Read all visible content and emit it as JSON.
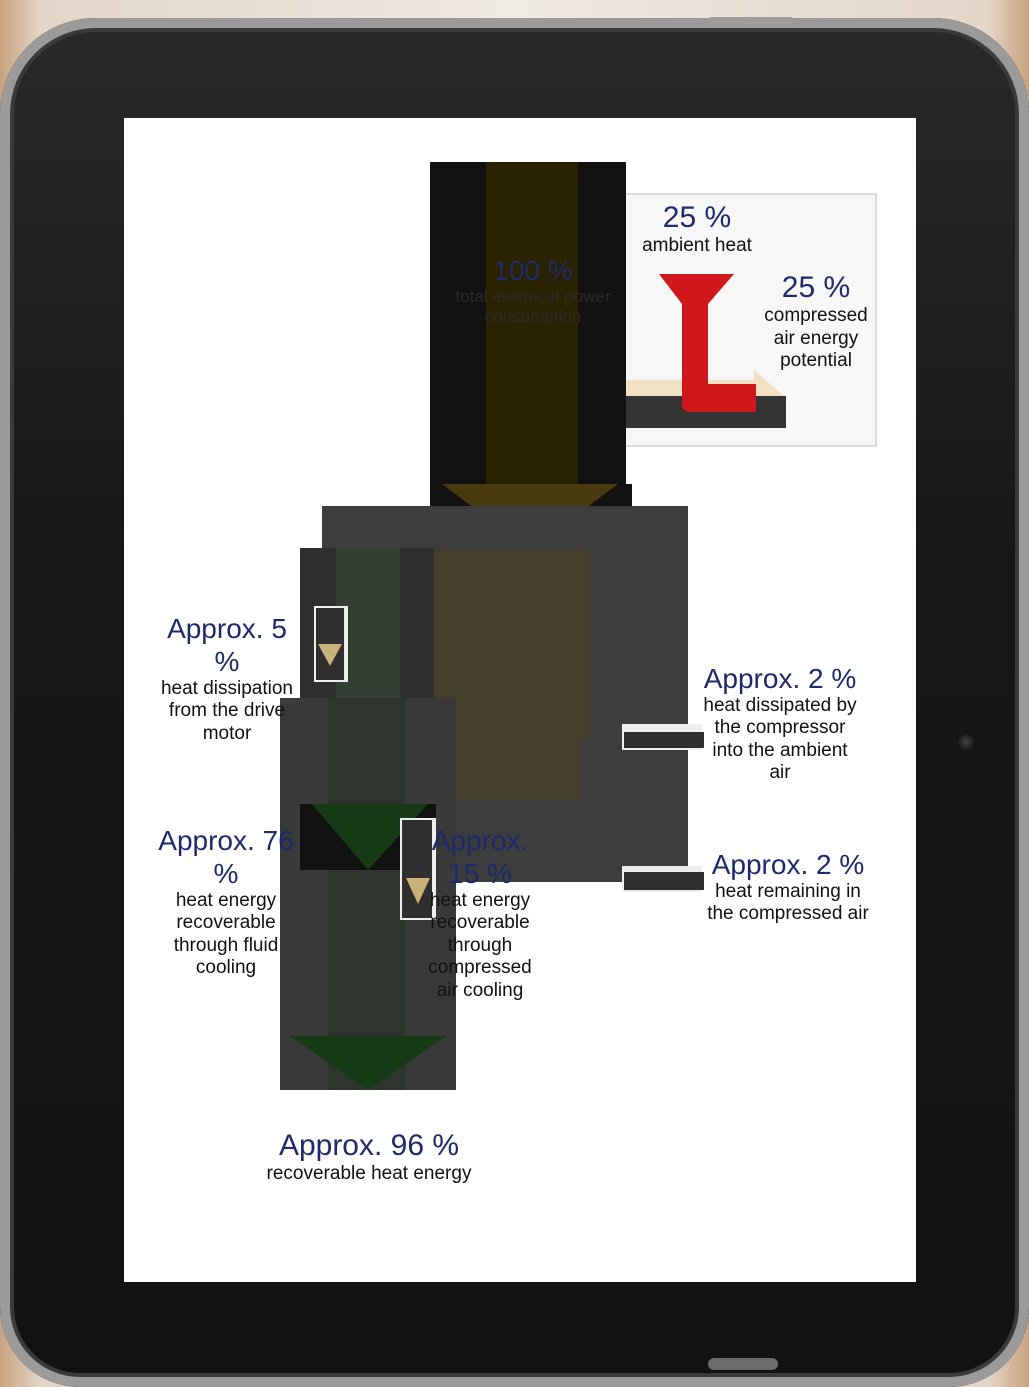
{
  "diagram": {
    "total": {
      "value": "100 %",
      "label": "total electrical power consumption"
    },
    "ambient": {
      "value": "25 %",
      "label": "ambient heat"
    },
    "compressed_air": {
      "value": "25 %",
      "label": "compressed air energy potential"
    },
    "drive_motor": {
      "value": "Approx. 5 %",
      "label": "heat dissipation from the drive motor"
    },
    "compressor_ambient": {
      "value": "Approx. 2 %",
      "label": "heat dissipated by the compressor into the ambient air"
    },
    "fluid_cooling": {
      "value": "Approx. 76 %",
      "label": "heat energy recoverable through fluid cooling"
    },
    "air_cooling": {
      "value": "Approx. 15 %",
      "label": "heat energy recoverable through compressed air cooling"
    },
    "remaining_air": {
      "value": "Approx. 2 %",
      "label": "heat remaining in the compressed air"
    },
    "recoverable": {
      "value": "Approx. 96 %",
      "label": "recoverable heat energy"
    }
  },
  "colors": {
    "dark_block": "#111111",
    "grey_block": "#3d3d3d",
    "arrow_gold": "#4a3a10",
    "arrow_green": "#173a17",
    "red_arrow": "#d0171c",
    "value_text": "#1e2a6b"
  }
}
